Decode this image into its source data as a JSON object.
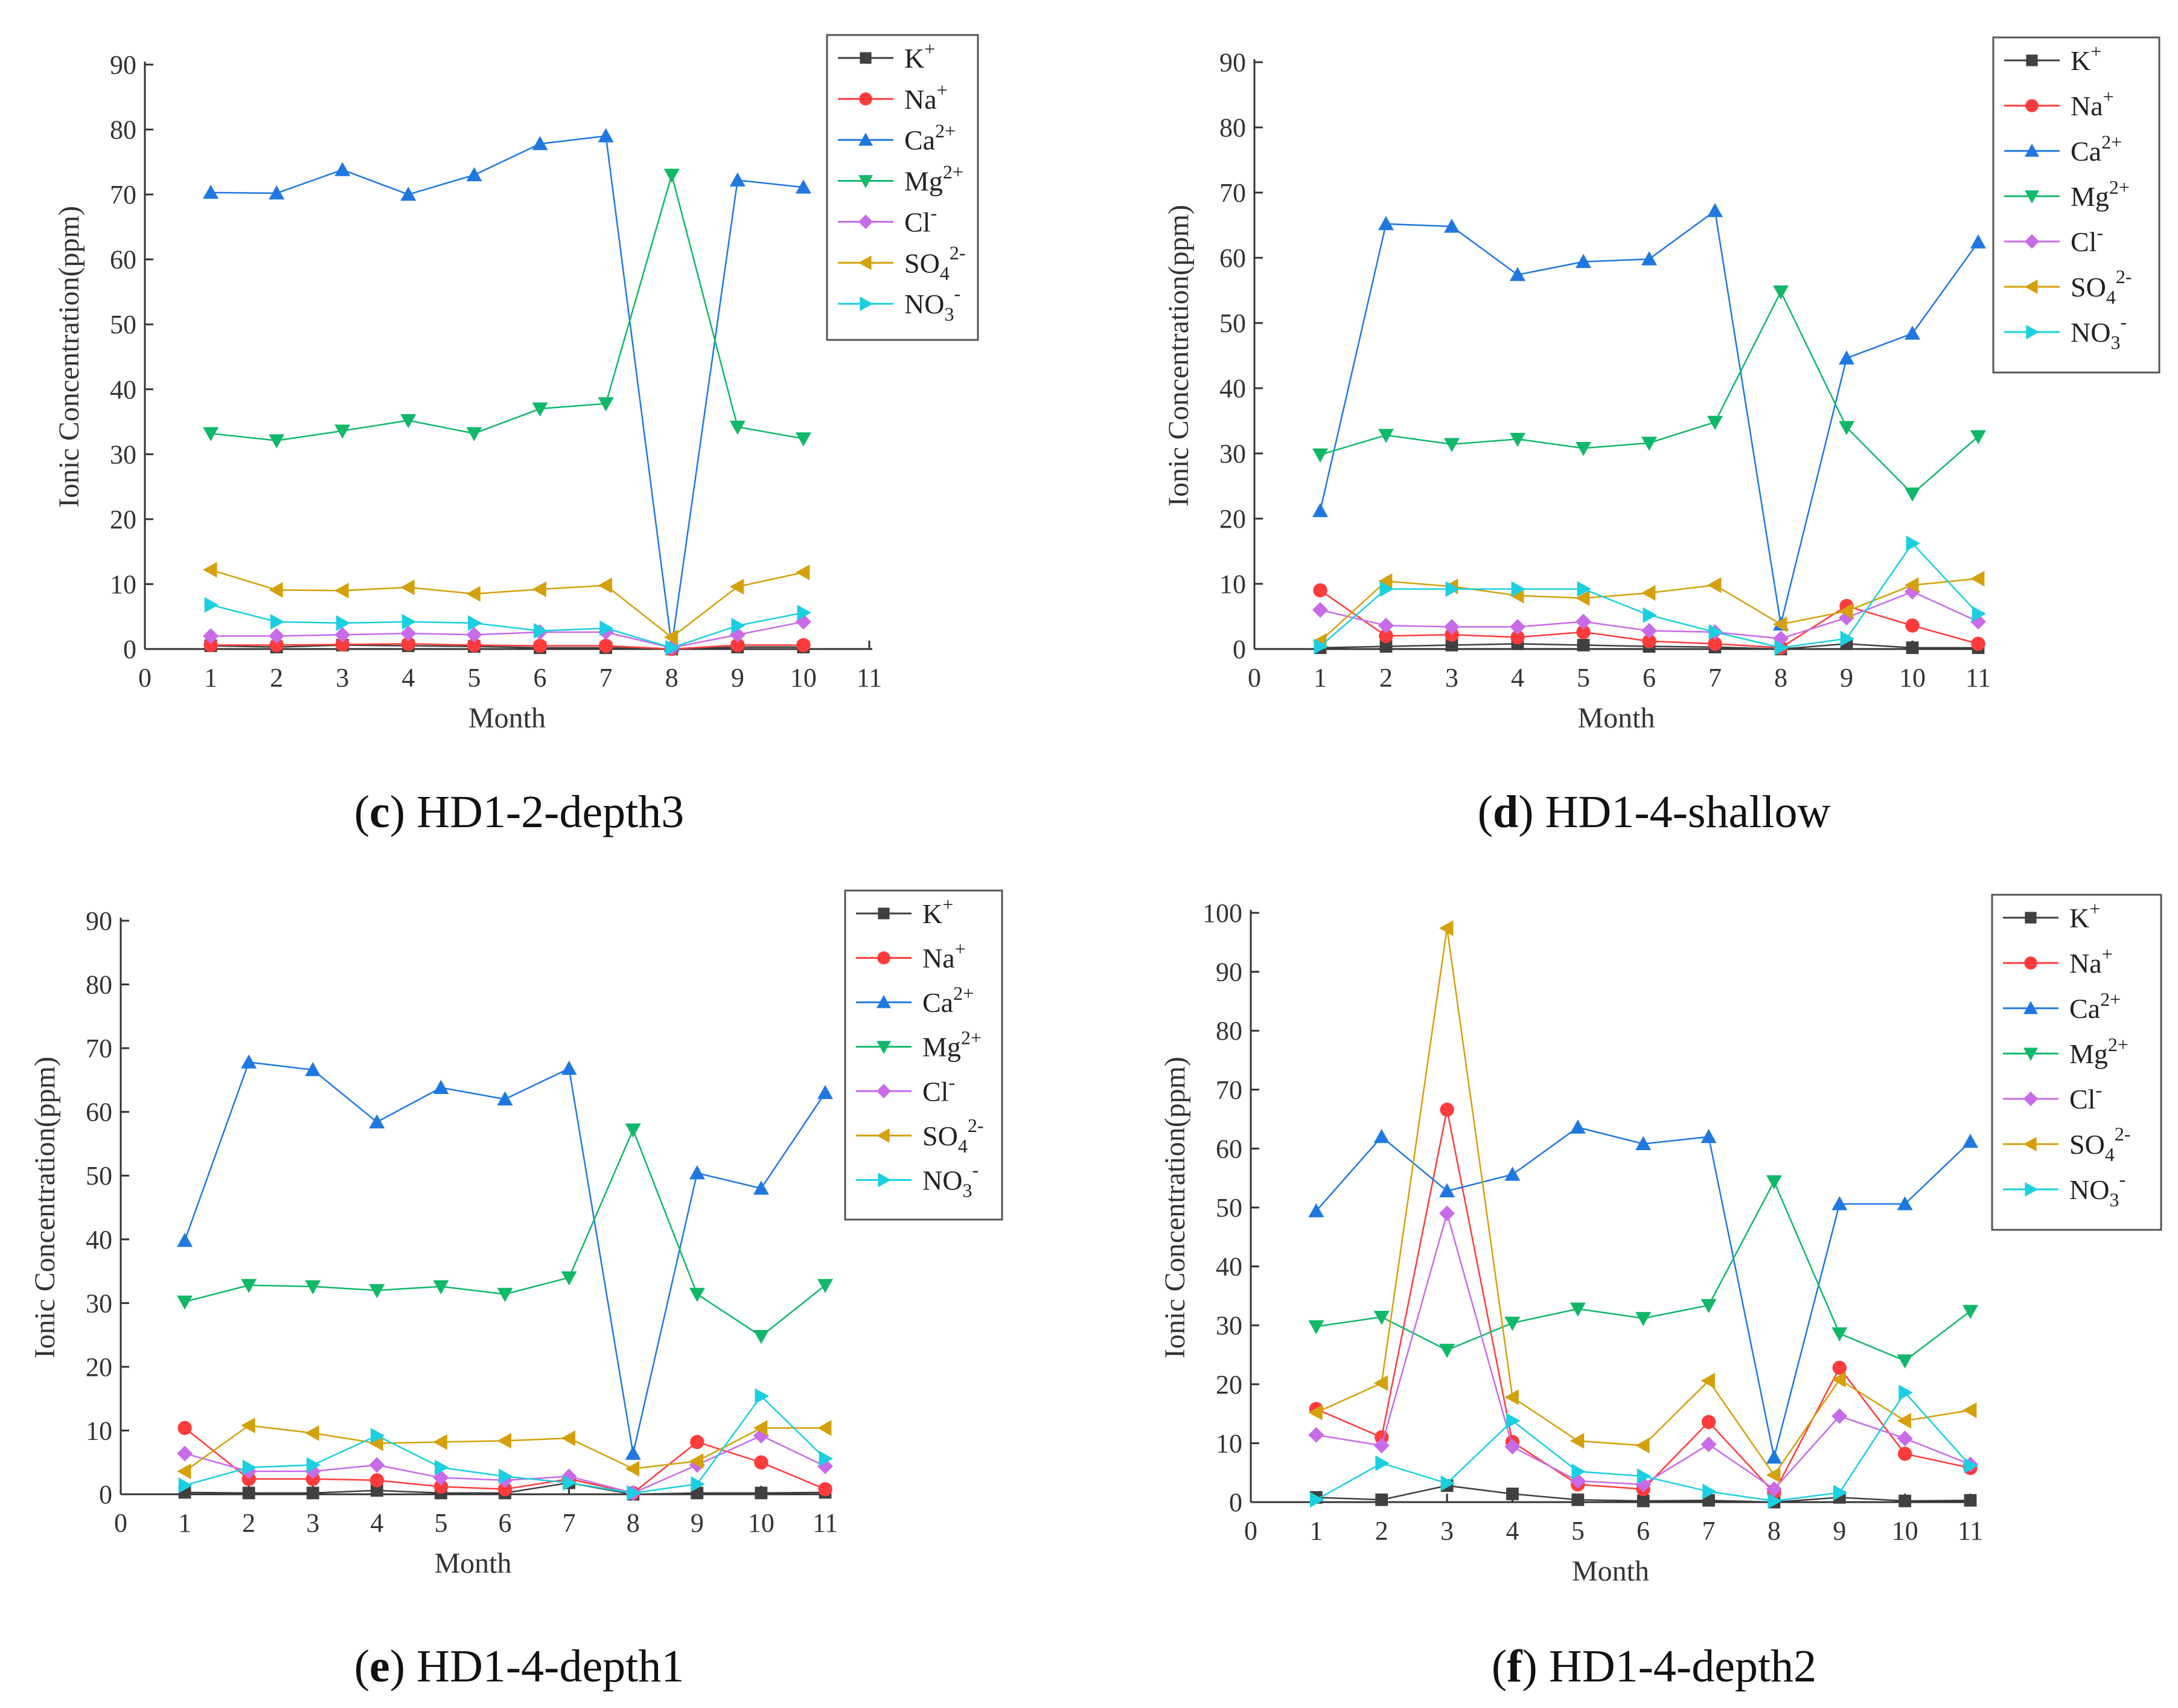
{
  "figure": "Ionic concentration by month at monitoring points",
  "legend": [
    {
      "name": "K",
      "sup": "+",
      "sub": "",
      "color": "#404040",
      "marker": "square"
    },
    {
      "name": "Na",
      "sup": "+",
      "sub": "",
      "color": "#ff3b3b",
      "marker": "circle"
    },
    {
      "name": "Ca",
      "sup": "2+",
      "sub": "",
      "color": "#1f78e0",
      "marker": "triangle-up"
    },
    {
      "name": "Mg",
      "sup": "2+",
      "sub": "",
      "color": "#10b86a",
      "marker": "triangle-down"
    },
    {
      "name": "Cl",
      "sup": "-",
      "sub": "",
      "color": "#c86be8",
      "marker": "diamond"
    },
    {
      "name": "SO",
      "sup": "2-",
      "sub": "4",
      "color": "#d4a10a",
      "marker": "triangle-left"
    },
    {
      "name": "NO",
      "sup": "-",
      "sub": "3",
      "color": "#1ad0e0",
      "marker": "triangle-right"
    }
  ],
  "chart_data": [
    {
      "type": "line",
      "caption_letter": "c",
      "caption_text": " HD1-2-depth3",
      "xlabel": "Month",
      "ylabel": "Ionic Concentration(ppm)",
      "xlim": [
        0,
        11
      ],
      "ylim": [
        0,
        90
      ],
      "xticks": [
        0,
        1,
        2,
        3,
        4,
        5,
        6,
        7,
        8,
        9,
        10,
        11
      ],
      "yticks": [
        0,
        10,
        20,
        30,
        40,
        50,
        60,
        70,
        80,
        90
      ],
      "x": [
        1,
        2,
        3,
        4,
        5,
        6,
        7,
        8,
        9,
        10
      ],
      "series": [
        {
          "name": "K+",
          "values": [
            0.5,
            0.3,
            0.6,
            0.5,
            0.4,
            0.2,
            0.2,
            0,
            0.3,
            0.3
          ]
        },
        {
          "name": "Na+",
          "values": [
            0.6,
            0.6,
            0.7,
            0.8,
            0.6,
            0.5,
            0.5,
            0,
            0.6,
            0.6
          ]
        },
        {
          "name": "Ca2+",
          "values": [
            70.3,
            70.2,
            73.8,
            70.0,
            73.0,
            77.8,
            79.0,
            0.5,
            72.2,
            71.1
          ]
        },
        {
          "name": "Mg2+",
          "values": [
            33.2,
            32.1,
            33.6,
            35.2,
            33.2,
            37.0,
            37.8,
            73.0,
            34.2,
            32.4
          ]
        },
        {
          "name": "Cl-",
          "values": [
            2.0,
            2.0,
            2.2,
            2.4,
            2.2,
            2.6,
            2.6,
            0.2,
            2.2,
            4.2
          ]
        },
        {
          "name": "SO42-",
          "values": [
            12.2,
            9.1,
            9.0,
            9.5,
            8.5,
            9.2,
            9.8,
            1.8,
            9.6,
            11.8
          ]
        },
        {
          "name": "NO3-",
          "values": [
            6.8,
            4.2,
            4.0,
            4.2,
            4.0,
            2.8,
            3.2,
            0.2,
            3.6,
            5.6
          ]
        }
      ]
    },
    {
      "type": "line",
      "caption_letter": "d",
      "caption_text": " HD1-4-shallow",
      "xlabel": "Month",
      "ylabel": "Ionic Concentration(ppm)",
      "xlim": [
        0,
        11
      ],
      "ylim": [
        0,
        90
      ],
      "xticks": [
        0,
        1,
        2,
        3,
        4,
        5,
        6,
        7,
        8,
        9,
        10,
        11
      ],
      "yticks": [
        0,
        10,
        20,
        30,
        40,
        50,
        60,
        70,
        80,
        90
      ],
      "x": [
        1,
        2,
        3,
        4,
        5,
        6,
        7,
        8,
        9,
        10,
        11
      ],
      "series": [
        {
          "name": "K+",
          "values": [
            0.2,
            0.4,
            0.6,
            0.8,
            0.6,
            0.4,
            0.3,
            0,
            0.8,
            0.2,
            0.2
          ]
        },
        {
          "name": "Na+",
          "values": [
            9.0,
            2.0,
            2.2,
            1.8,
            2.6,
            1.2,
            0.8,
            0.2,
            6.6,
            3.6,
            0.8
          ]
        },
        {
          "name": "Ca2+",
          "values": [
            21.2,
            65.2,
            64.8,
            57.4,
            59.4,
            59.8,
            67.2,
            3.8,
            44.6,
            48.4,
            62.4
          ]
        },
        {
          "name": "Mg2+",
          "values": [
            29.8,
            32.8,
            31.4,
            32.2,
            30.8,
            31.6,
            34.8,
            54.8,
            34.0,
            23.8,
            32.6
          ]
        },
        {
          "name": "Cl-",
          "values": [
            6.0,
            3.6,
            3.4,
            3.4,
            4.2,
            2.8,
            2.6,
            1.6,
            4.8,
            8.8,
            4.2
          ]
        },
        {
          "name": "SO42-",
          "values": [
            1.2,
            10.4,
            9.6,
            8.2,
            7.8,
            8.6,
            9.8,
            3.8,
            5.8,
            9.8,
            10.8
          ]
        },
        {
          "name": "NO3-",
          "values": [
            0.4,
            9.2,
            9.2,
            9.2,
            9.2,
            5.2,
            2.6,
            0.2,
            1.6,
            16.2,
            5.4
          ]
        }
      ]
    },
    {
      "type": "line",
      "caption_letter": "e",
      "caption_text": " HD1-4-depth1",
      "xlabel": "Month",
      "ylabel": "Ionic Concentration(ppm)",
      "xlim": [
        0,
        11
      ],
      "ylim": [
        0,
        90
      ],
      "xticks": [
        0,
        1,
        2,
        3,
        4,
        5,
        6,
        7,
        8,
        9,
        10,
        11
      ],
      "yticks": [
        0,
        10,
        20,
        30,
        40,
        50,
        60,
        70,
        80,
        90
      ],
      "x": [
        1,
        2,
        3,
        4,
        5,
        6,
        7,
        8,
        9,
        10,
        11
      ],
      "series": [
        {
          "name": "K+",
          "values": [
            0.3,
            0.2,
            0.2,
            0.6,
            0.2,
            0.2,
            1.8,
            0,
            0.2,
            0.2,
            0.3
          ]
        },
        {
          "name": "Na+",
          "values": [
            10.4,
            2.4,
            2.4,
            2.2,
            1.2,
            0.8,
            2.4,
            0.2,
            8.2,
            5.0,
            0.8
          ]
        },
        {
          "name": "Ca2+",
          "values": [
            39.8,
            67.8,
            66.6,
            58.4,
            63.8,
            62.0,
            66.8,
            6.4,
            50.4,
            48.0,
            63.0
          ]
        },
        {
          "name": "Mg2+",
          "values": [
            30.2,
            32.8,
            32.6,
            32.0,
            32.6,
            31.4,
            34.0,
            57.2,
            31.4,
            24.8,
            32.8
          ]
        },
        {
          "name": "Cl-",
          "values": [
            6.4,
            3.6,
            3.6,
            4.6,
            2.6,
            2.2,
            2.8,
            0.2,
            4.6,
            9.2,
            4.4
          ]
        },
        {
          "name": "SO42-",
          "values": [
            3.6,
            10.8,
            9.6,
            8.0,
            8.2,
            8.4,
            8.8,
            4.0,
            5.2,
            10.4,
            10.4
          ]
        },
        {
          "name": "NO3-",
          "values": [
            1.4,
            4.2,
            4.6,
            9.2,
            4.2,
            2.8,
            1.8,
            0.2,
            1.6,
            15.4,
            5.6
          ]
        }
      ]
    },
    {
      "type": "line",
      "caption_letter": "f",
      "caption_text": " HD1-4-depth2",
      "xlabel": "Month",
      "ylabel": "Ionic Concentration(ppm)",
      "xlim": [
        0,
        11
      ],
      "ylim": [
        0,
        100
      ],
      "xticks": [
        0,
        1,
        2,
        3,
        4,
        5,
        6,
        7,
        8,
        9,
        10,
        11
      ],
      "yticks": [
        0,
        10,
        20,
        30,
        40,
        50,
        60,
        70,
        80,
        90,
        100
      ],
      "x": [
        1,
        2,
        3,
        4,
        5,
        6,
        7,
        8,
        9,
        10,
        11
      ],
      "series": [
        {
          "name": "K+",
          "values": [
            0.8,
            0.4,
            2.8,
            1.4,
            0.4,
            0.2,
            0.3,
            0,
            0.8,
            0.2,
            0.3
          ]
        },
        {
          "name": "Na+",
          "values": [
            15.8,
            11.0,
            66.6,
            10.2,
            3.0,
            2.2,
            13.6,
            1.6,
            22.8,
            8.2,
            5.8
          ]
        },
        {
          "name": "Ca2+",
          "values": [
            49.4,
            62.0,
            52.8,
            55.6,
            63.6,
            60.8,
            62.0,
            7.6,
            50.6,
            50.6,
            61.2
          ]
        },
        {
          "name": "Mg2+",
          "values": [
            29.8,
            31.4,
            25.8,
            30.4,
            32.8,
            31.2,
            33.4,
            54.4,
            28.6,
            24.0,
            32.4
          ]
        },
        {
          "name": "Cl-",
          "values": [
            11.4,
            9.6,
            49.0,
            9.4,
            3.6,
            3.0,
            9.8,
            2.2,
            14.6,
            10.8,
            6.4
          ]
        },
        {
          "name": "SO42-",
          "values": [
            15.2,
            20.2,
            97.4,
            17.8,
            10.4,
            9.6,
            20.6,
            4.6,
            20.8,
            13.8,
            15.6
          ]
        },
        {
          "name": "NO3-",
          "values": [
            0.4,
            6.6,
            3.2,
            13.8,
            5.2,
            4.4,
            1.8,
            0.2,
            1.6,
            18.6,
            6.2
          ]
        }
      ]
    }
  ]
}
